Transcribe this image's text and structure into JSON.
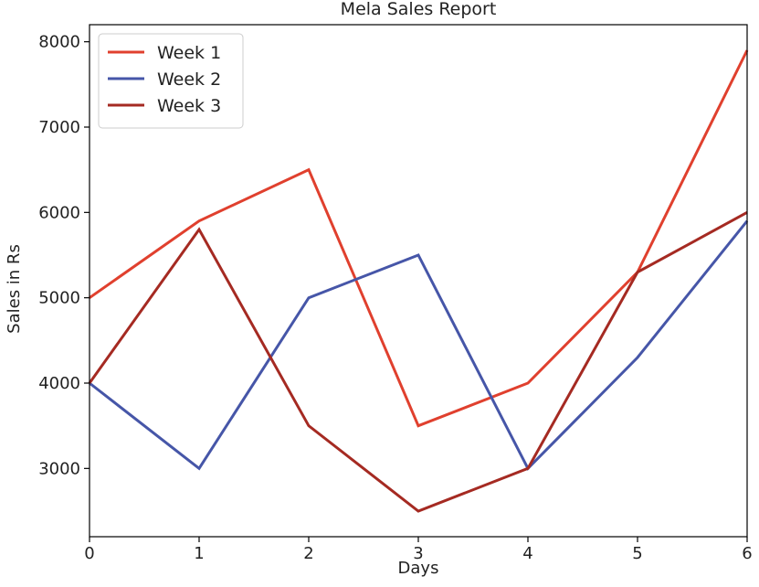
{
  "chart_data": {
    "type": "line",
    "title": "Mela Sales Report",
    "xlabel": "Days",
    "ylabel": "Sales in Rs",
    "x": [
      0,
      1,
      2,
      3,
      4,
      5,
      6
    ],
    "xlim": [
      0,
      6
    ],
    "ylim": [
      2200,
      8200
    ],
    "xticks": [
      0,
      1,
      2,
      3,
      4,
      5,
      6
    ],
    "yticks": [
      3000,
      4000,
      5000,
      6000,
      7000,
      8000
    ],
    "grid": false,
    "legend_position": "top-left",
    "series": [
      {
        "name": "Week 1",
        "color": "#e0402e",
        "values": [
          5000,
          5900,
          6500,
          3500,
          4000,
          5300,
          7900
        ]
      },
      {
        "name": "Week 2",
        "color": "#4656a8",
        "values": [
          4000,
          3000,
          5000,
          5500,
          3000,
          4300,
          5900
        ]
      },
      {
        "name": "Week 3",
        "color": "#a52a22",
        "values": [
          4000,
          5800,
          3500,
          2500,
          3000,
          5300,
          6000
        ]
      }
    ]
  }
}
